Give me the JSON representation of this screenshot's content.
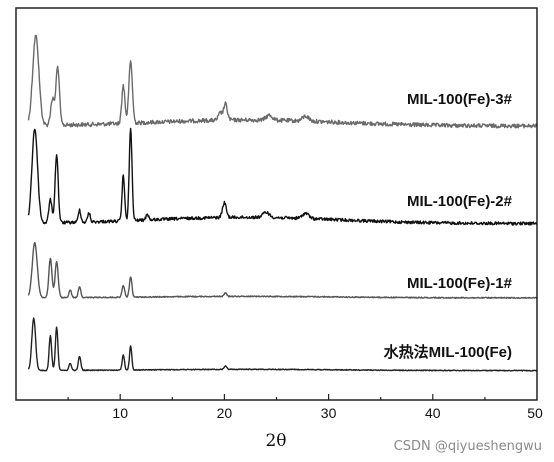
{
  "chart_data": {
    "type": "line",
    "xlabel": "2θ",
    "ylabel": "",
    "xlim": [
      0,
      50
    ],
    "xticks": [
      10,
      20,
      30,
      40,
      50
    ],
    "grid": false,
    "series": [
      {
        "name": "MIL-100(Fe)-3#",
        "color": "#6a6a6a",
        "baseline": 0.8,
        "peaks": [
          [
            1.9,
            9.0,
            0.5
          ],
          [
            3.5,
            2.6,
            0.3
          ],
          [
            4.0,
            5.8,
            0.28
          ],
          [
            10.3,
            3.8,
            0.25
          ],
          [
            11.0,
            6.2,
            0.28
          ],
          [
            19.6,
            0.7,
            0.3
          ],
          [
            20.1,
            1.6,
            0.3
          ],
          [
            24.3,
            0.5,
            0.5
          ],
          [
            27.8,
            0.5,
            0.5
          ]
        ]
      },
      {
        "name": "MIL-100(Fe)-2#",
        "color": "#111111",
        "baseline": 0.8,
        "peaks": [
          [
            1.8,
            9.0,
            0.45
          ],
          [
            3.3,
            2.2,
            0.25
          ],
          [
            3.9,
            6.5,
            0.25
          ],
          [
            6.1,
            1.2,
            0.2
          ],
          [
            7.0,
            0.9,
            0.2
          ],
          [
            10.3,
            4.4,
            0.2
          ],
          [
            11.0,
            8.8,
            0.22
          ],
          [
            12.6,
            0.6,
            0.2
          ],
          [
            20.0,
            1.4,
            0.3
          ],
          [
            24.0,
            0.5,
            0.5
          ],
          [
            27.8,
            0.5,
            0.5
          ]
        ]
      },
      {
        "name": "MIL-100(Fe)-1#",
        "color": "#555555",
        "baseline": 0.25,
        "peaks": [
          [
            1.8,
            6.5,
            0.4
          ],
          [
            3.3,
            4.6,
            0.25
          ],
          [
            3.9,
            4.2,
            0.25
          ],
          [
            5.2,
            0.9,
            0.2
          ],
          [
            6.1,
            1.3,
            0.2
          ],
          [
            10.3,
            1.4,
            0.2
          ],
          [
            11.0,
            2.4,
            0.2
          ],
          [
            20.1,
            0.4,
            0.2
          ]
        ]
      },
      {
        "name": "水热法MIL-100(Fe)",
        "color": "#222222",
        "baseline": 0.2,
        "peaks": [
          [
            1.7,
            7.5,
            0.3
          ],
          [
            3.3,
            5.0,
            0.2
          ],
          [
            3.9,
            6.2,
            0.2
          ],
          [
            5.2,
            1.0,
            0.2
          ],
          [
            6.1,
            2.0,
            0.2
          ],
          [
            10.3,
            2.2,
            0.18
          ],
          [
            11.0,
            3.5,
            0.18
          ],
          [
            20.1,
            0.5,
            0.2
          ]
        ]
      }
    ]
  },
  "watermark": "CSDN @qiyueshengwu"
}
